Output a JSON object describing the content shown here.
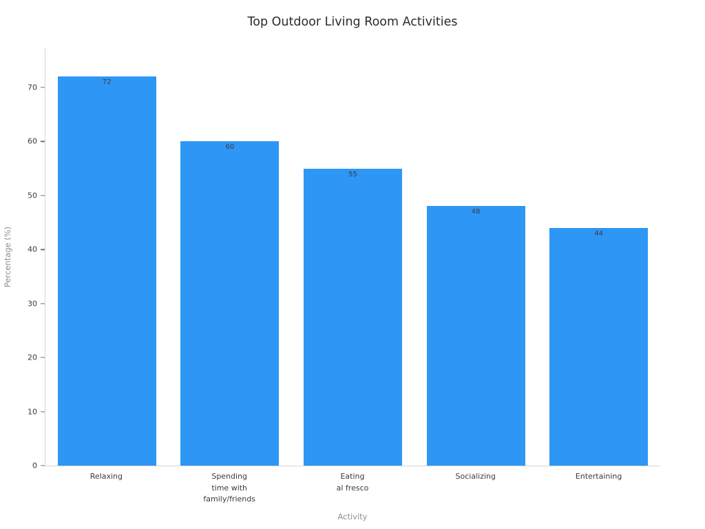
{
  "chart_data": {
    "type": "bar",
    "title": "Top Outdoor Living Room Activities",
    "xlabel": "Activity",
    "ylabel": "Percentage (%)",
    "categories": [
      "Relaxing",
      "Spending\ntime with\nfamily/friends",
      "Eating\nal fresco",
      "Socializing",
      "Entertaining"
    ],
    "values": [
      72,
      60,
      55,
      48,
      44
    ],
    "bar_color": "#2E96F5",
    "ylim": [
      0,
      77.25
    ],
    "yticks": [
      0,
      10,
      20,
      30,
      40,
      50,
      60,
      70
    ],
    "grid": false,
    "legend_position": "none"
  }
}
